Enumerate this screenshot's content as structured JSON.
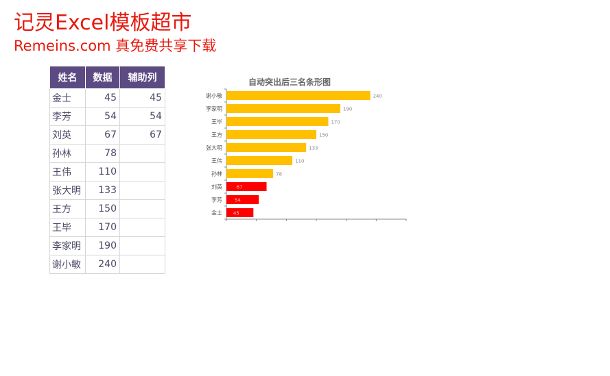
{
  "banner": {
    "line1": "记灵Excel模板超市",
    "line2": "Remeins.com 真免费共享下载"
  },
  "table": {
    "headers": [
      "姓名",
      "数据",
      "辅助列"
    ],
    "rows": [
      {
        "name": "金士",
        "value": "45",
        "helper": "45"
      },
      {
        "name": "李芳",
        "value": "54",
        "helper": "54"
      },
      {
        "name": "刘英",
        "value": "67",
        "helper": "67"
      },
      {
        "name": "孙林",
        "value": "78",
        "helper": ""
      },
      {
        "name": "王伟",
        "value": "110",
        "helper": ""
      },
      {
        "name": "张大明",
        "value": "133",
        "helper": ""
      },
      {
        "name": "王方",
        "value": "150",
        "helper": ""
      },
      {
        "name": "王毕",
        "value": "170",
        "helper": ""
      },
      {
        "name": "李家明",
        "value": "190",
        "helper": ""
      },
      {
        "name": "谢小敏",
        "value": "240",
        "helper": ""
      }
    ]
  },
  "chart_data": {
    "type": "bar",
    "orientation": "horizontal",
    "title": "自动突出后三名条形图",
    "xlabel": "",
    "ylabel": "",
    "categories": [
      "谢小敏",
      "李家明",
      "王毕",
      "王方",
      "张大明",
      "王伟",
      "孙林",
      "刘英",
      "李芳",
      "金士"
    ],
    "series": [
      {
        "values": [
          240,
          190,
          170,
          150,
          133,
          110,
          78,
          null,
          null,
          null
        ],
        "color": "#ffc000"
      },
      {
        "values": [
          null,
          null,
          null,
          null,
          null,
          null,
          null,
          67,
          54,
          45
        ],
        "color": "#ff0000"
      }
    ],
    "highlight_note_color": "#ff0000",
    "xlim": [
      0,
      300
    ],
    "grid": false,
    "legend": "none"
  }
}
